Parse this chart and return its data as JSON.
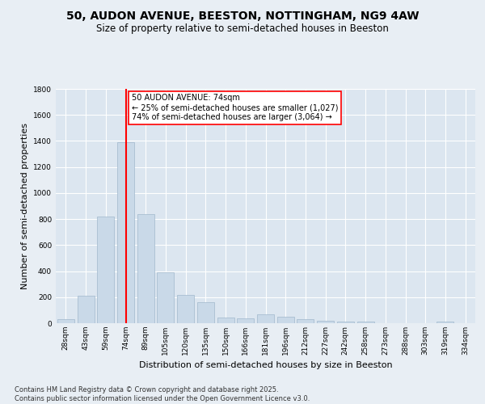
{
  "title_line1": "50, AUDON AVENUE, BEESTON, NOTTINGHAM, NG9 4AW",
  "title_line2": "Size of property relative to semi-detached houses in Beeston",
  "xlabel": "Distribution of semi-detached houses by size in Beeston",
  "ylabel": "Number of semi-detached properties",
  "categories": [
    "28sqm",
    "43sqm",
    "59sqm",
    "74sqm",
    "89sqm",
    "105sqm",
    "120sqm",
    "135sqm",
    "150sqm",
    "166sqm",
    "181sqm",
    "196sqm",
    "212sqm",
    "227sqm",
    "242sqm",
    "258sqm",
    "273sqm",
    "288sqm",
    "303sqm",
    "319sqm",
    "334sqm"
  ],
  "values": [
    30,
    210,
    820,
    1390,
    840,
    390,
    215,
    160,
    45,
    40,
    70,
    50,
    30,
    20,
    10,
    10,
    0,
    0,
    0,
    15,
    0
  ],
  "bar_color": "#c9d9e8",
  "bar_edgecolor": "#a0b8cc",
  "vline_x": 3,
  "vline_color": "red",
  "annotation_text": "50 AUDON AVENUE: 74sqm\n← 25% of semi-detached houses are smaller (1,027)\n74% of semi-detached houses are larger (3,064) →",
  "annotation_box_edgecolor": "red",
  "ylim": [
    0,
    1800
  ],
  "yticks": [
    0,
    200,
    400,
    600,
    800,
    1000,
    1200,
    1400,
    1600,
    1800
  ],
  "background_color": "#e8eef4",
  "plot_bg_color": "#dce6f0",
  "grid_color": "#ffffff",
  "footer_text": "Contains HM Land Registry data © Crown copyright and database right 2025.\nContains public sector information licensed under the Open Government Licence v3.0.",
  "title_fontsize": 10,
  "subtitle_fontsize": 8.5,
  "tick_fontsize": 6.5,
  "xlabel_fontsize": 8,
  "ylabel_fontsize": 8,
  "footer_fontsize": 6,
  "annotation_fontsize": 7
}
